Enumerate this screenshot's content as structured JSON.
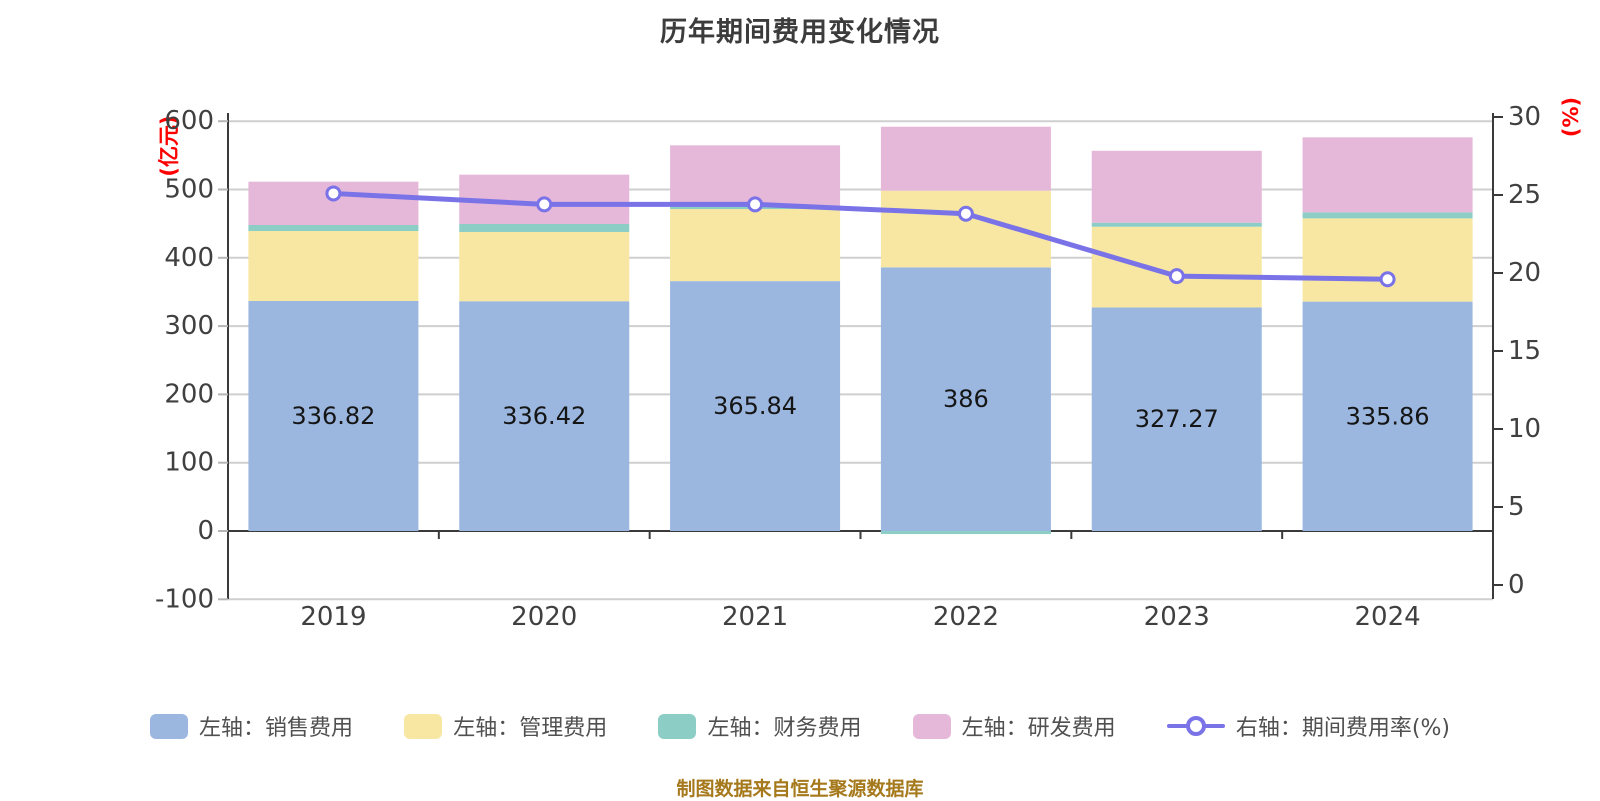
{
  "chart_data": {
    "type": "bar",
    "subtype": "stacked-bars-with-right-axis-line",
    "title": "历年期间费用变化情况",
    "source_note": "制图数据来自恒生聚源数据库",
    "categories": [
      "2019",
      "2020",
      "2021",
      "2022",
      "2023",
      "2024"
    ],
    "left_axis": {
      "unit": "(亿元)",
      "ticks": [
        "600",
        "500",
        "400",
        "300",
        "200",
        "100",
        "0",
        "-100"
      ],
      "range": [
        -100,
        600
      ]
    },
    "right_axis": {
      "unit": "(%)",
      "ticks": [
        "30",
        "25",
        "20",
        "15",
        "10",
        "5",
        "0"
      ],
      "range": [
        0,
        30
      ]
    },
    "series": [
      {
        "key": "sales",
        "name": "左轴：销售费用",
        "type": "bar",
        "axis": "left",
        "color": "#9BB7E0",
        "values": [
          336.82,
          336.42,
          365.84,
          386,
          327.27,
          335.86
        ]
      },
      {
        "key": "admin",
        "name": "左轴：管理费用",
        "type": "bar",
        "axis": "left",
        "color": "#F7E7A2",
        "values": [
          102.4,
          101.4,
          105.6,
          112.2,
          118.2,
          121.9
        ]
      },
      {
        "key": "finance",
        "name": "左轴：财务费用",
        "type": "bar",
        "axis": "left",
        "color": "#8CCEC5",
        "values": [
          8.8,
          11.7,
          4.0,
          -4.4,
          5.9,
          8.8
        ]
      },
      {
        "key": "rd",
        "name": "左轴：研发费用",
        "type": "bar",
        "axis": "left",
        "color": "#E5B7D9",
        "values": [
          63.4,
          72.2,
          89.2,
          93.7,
          105.3,
          109.8
        ]
      },
      {
        "key": "ratio",
        "name": "右轴：期间费用率(%)",
        "type": "line",
        "axis": "right",
        "color": "#7A73E8",
        "values": [
          25.1,
          24.4,
          24.4,
          23.8,
          19.8,
          19.6
        ]
      }
    ],
    "bar_value_labels": [
      "336.82",
      "336.42",
      "365.84",
      "386",
      "327.27",
      "335.86"
    ],
    "grid": true,
    "legend_position": "bottom"
  },
  "colors": {
    "title": "#3C3C3C",
    "axis_line": "#3A3A3A",
    "tick_label": "#404040",
    "grid_line": "#CFCFCF",
    "minor_tick": "#B5B5B5",
    "unit_label": "#FF0000",
    "bar_label": "#151515",
    "legend_text": "#505050",
    "source_note": "#A5791C",
    "marker_fill": "#FFFFFF"
  }
}
